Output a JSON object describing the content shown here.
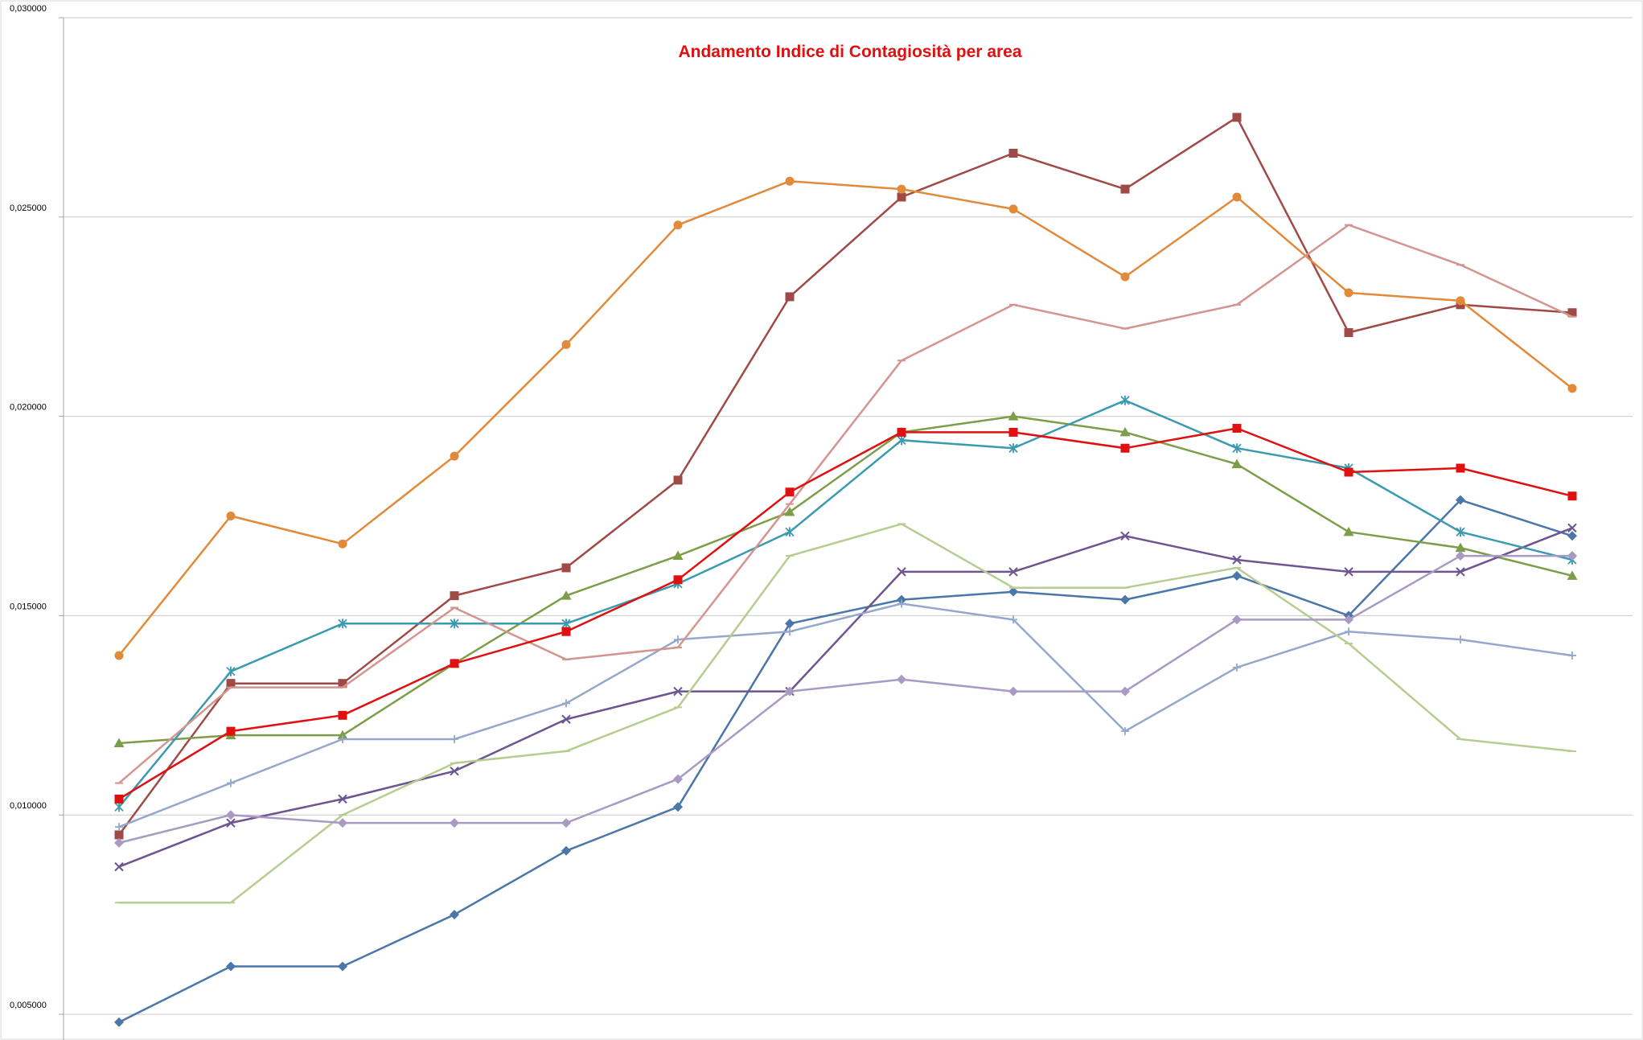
{
  "chart_data": {
    "type": "line",
    "title": "Andamento Indice di Contagiosità per area",
    "title_color": "#e01010",
    "xlabel": "",
    "ylabel": "",
    "ylim": [
      0.004,
      0.03
    ],
    "yticks": [
      0.005,
      0.01,
      0.015,
      0.02,
      0.025,
      0.03
    ],
    "ytick_labels": [
      "0,005000",
      "0,010000",
      "0,015000",
      "0,020000",
      "0,025000",
      "0,030000"
    ],
    "x": [
      1,
      2,
      3,
      4,
      5,
      6,
      7,
      8,
      9,
      10,
      11,
      12,
      13,
      14
    ],
    "grid": "horizontal",
    "legend": "none",
    "series": [
      {
        "color": "#4a76a8",
        "marker": "diamond",
        "values": [
          0.0048,
          0.0062,
          0.0062,
          0.0075,
          0.0091,
          0.0102,
          0.0148,
          0.0154,
          0.0156,
          0.0154,
          0.016,
          0.015,
          0.0179,
          0.017
        ]
      },
      {
        "color": "#a04a48",
        "marker": "square",
        "values": [
          0.0095,
          0.0133,
          0.0133,
          0.0155,
          0.0162,
          0.0184,
          0.023,
          0.0255,
          0.0266,
          0.0257,
          0.0275,
          0.0221,
          0.0228,
          0.0226
        ]
      },
      {
        "color": "#7c9e48",
        "marker": "triangle",
        "values": [
          0.0118,
          0.012,
          0.012,
          0.0138,
          0.0155,
          0.0165,
          0.0176,
          0.0196,
          0.02,
          0.0196,
          0.0188,
          0.0171,
          0.0167,
          0.016
        ]
      },
      {
        "color": "#6e5490",
        "marker": "x",
        "values": [
          0.0087,
          0.0098,
          0.0104,
          0.0111,
          0.0124,
          0.0131,
          0.0131,
          0.0161,
          0.0161,
          0.017,
          0.0164,
          0.0161,
          0.0161,
          0.0172
        ]
      },
      {
        "color": "#3a9ab0",
        "marker": "star",
        "values": [
          0.0102,
          0.0136,
          0.0148,
          0.0148,
          0.0148,
          0.0158,
          0.0171,
          0.0194,
          0.0192,
          0.0204,
          0.0192,
          0.0187,
          0.0171,
          0.0164
        ]
      },
      {
        "color": "#e08a3a",
        "marker": "circle",
        "values": [
          0.014,
          0.0175,
          0.0168,
          0.019,
          0.0218,
          0.0248,
          0.0259,
          0.0257,
          0.0252,
          0.0235,
          0.0255,
          0.0231,
          0.0229,
          0.0207
        ]
      },
      {
        "color": "#95a8cc",
        "marker": "plus",
        "values": [
          0.0097,
          0.0108,
          0.0119,
          0.0119,
          0.0128,
          0.0144,
          0.0146,
          0.0153,
          0.0149,
          0.0121,
          0.0137,
          0.0146,
          0.0144,
          0.014
        ]
      },
      {
        "color": "#d49490",
        "marker": "dash",
        "values": [
          0.0108,
          0.0132,
          0.0132,
          0.0152,
          0.0139,
          0.0142,
          0.0178,
          0.0214,
          0.0228,
          0.0222,
          0.0228,
          0.0248,
          0.0238,
          0.0225
        ]
      },
      {
        "color": "#b6cc90",
        "marker": "dash",
        "values": [
          0.0078,
          0.0078,
          0.01,
          0.0113,
          0.0116,
          0.0127,
          0.0165,
          0.0173,
          0.0157,
          0.0157,
          0.0162,
          0.0143,
          0.0119,
          0.0116
        ]
      },
      {
        "color": "#a99ac4",
        "marker": "diamond",
        "values": [
          0.0093,
          0.01,
          0.0098,
          0.0098,
          0.0098,
          0.0109,
          0.0131,
          0.0134,
          0.0131,
          0.0131,
          0.0149,
          0.0149,
          0.0165,
          0.0165
        ]
      },
      {
        "color": "#e01010",
        "marker": "square",
        "values": [
          0.0104,
          0.0121,
          0.0125,
          0.0138,
          0.0146,
          0.0159,
          0.0181,
          0.0196,
          0.0196,
          0.0192,
          0.0197,
          0.0186,
          0.0187,
          0.018
        ]
      }
    ]
  }
}
